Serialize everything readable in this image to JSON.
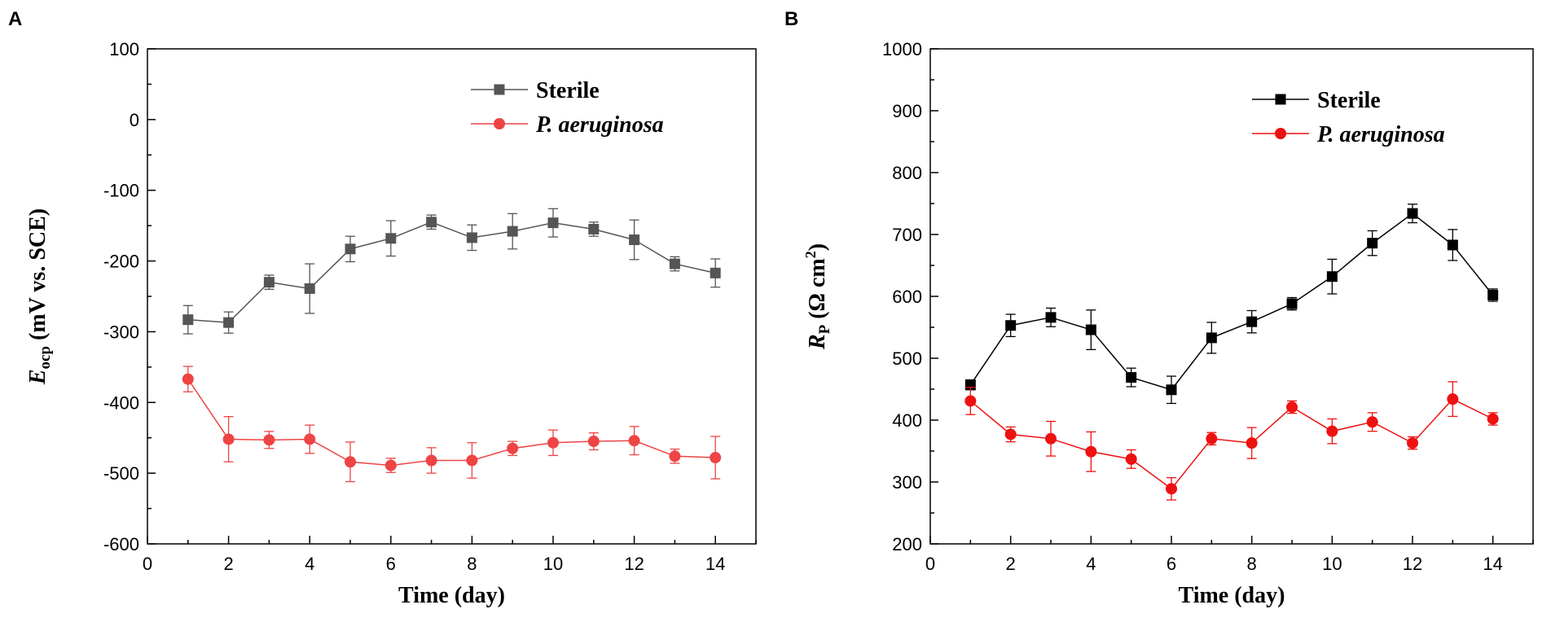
{
  "panels": [
    {
      "label": "A",
      "chart_data": {
        "type": "line",
        "title": "",
        "xlabel": "Time (day)",
        "ylabel_main": "E",
        "ylabel_sub": "ocp",
        "ylabel_rest": " (mV vs. SCE)",
        "xlim": [
          0,
          15
        ],
        "ylim": [
          -600,
          100
        ],
        "xticks": [
          0,
          2,
          4,
          6,
          8,
          10,
          12,
          14
        ],
        "yticks": [
          -600,
          -500,
          -400,
          -300,
          -200,
          -100,
          0,
          100
        ],
        "x": [
          1,
          2,
          3,
          4,
          5,
          6,
          7,
          8,
          9,
          10,
          11,
          12,
          13,
          14
        ],
        "legend_position": "top-right",
        "series": [
          {
            "name": "Sterile",
            "italic": false,
            "color": "#555555",
            "marker": "square",
            "values": [
              -283,
              -287,
              -230,
              -239,
              -183,
              -168,
              -145,
              -167,
              -158,
              -146,
              -155,
              -170,
              -204,
              -217
            ],
            "errors": [
              20,
              15,
              10,
              35,
              18,
              25,
              10,
              18,
              25,
              20,
              10,
              28,
              10,
              20
            ]
          },
          {
            "name": "P. aeruginosa",
            "italic": true,
            "color": "#ee4444",
            "marker": "circle",
            "values": [
              -367,
              -452,
              -453,
              -452,
              -484,
              -489,
              -482,
              -482,
              -465,
              -457,
              -455,
              -454,
              -476,
              -478
            ],
            "errors": [
              18,
              32,
              12,
              20,
              28,
              10,
              18,
              25,
              10,
              18,
              12,
              20,
              10,
              30
            ]
          }
        ]
      }
    },
    {
      "label": "B",
      "chart_data": {
        "type": "line",
        "title": "",
        "xlabel": "Time (day)",
        "ylabel_main": "R",
        "ylabel_sub": "P",
        "ylabel_rest": " (Ω cm",
        "ylabel_sup": "2",
        "ylabel_end": ")",
        "xlim": [
          0,
          15
        ],
        "ylim": [
          200,
          1000
        ],
        "xticks": [
          0,
          2,
          4,
          6,
          8,
          10,
          12,
          14
        ],
        "yticks": [
          200,
          300,
          400,
          500,
          600,
          700,
          800,
          900,
          1000
        ],
        "x": [
          1,
          2,
          3,
          4,
          5,
          6,
          7,
          8,
          9,
          10,
          11,
          12,
          13,
          14
        ],
        "legend_position": "top-right",
        "series": [
          {
            "name": "Sterile",
            "italic": false,
            "color": "#000000",
            "marker": "square",
            "values": [
              457,
              553,
              566,
              546,
              469,
              449,
              533,
              559,
              588,
              632,
              686,
              734,
              683,
              602
            ],
            "errors": [
              8,
              18,
              15,
              32,
              15,
              22,
              25,
              18,
              10,
              28,
              20,
              15,
              25,
              10
            ]
          },
          {
            "name": "P. aeruginosa",
            "italic": true,
            "color": "#ee1111",
            "marker": "circle",
            "values": [
              431,
              377,
              370,
              349,
              337,
              289,
              370,
              363,
              421,
              382,
              397,
              363,
              434,
              402
            ],
            "errors": [
              22,
              12,
              28,
              32,
              15,
              18,
              10,
              25,
              10,
              20,
              15,
              10,
              28,
              10
            ]
          }
        ]
      }
    }
  ]
}
